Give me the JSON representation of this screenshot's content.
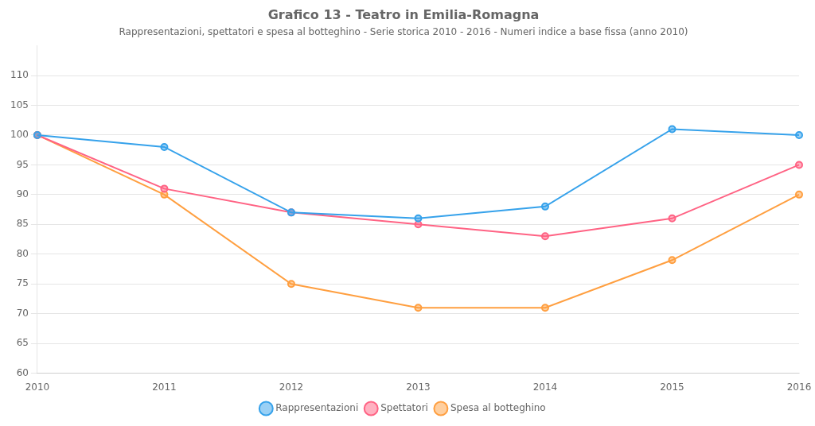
{
  "chart_data": {
    "type": "line",
    "title": "Grafico 13 - Teatro in Emilia-Romagna",
    "subtitle": "Rappresentazioni, spettatori e spesa al botteghino - Serie storica 2010 - 2016 - Numeri indice a base fissa (anno 2010)",
    "categories": [
      "2010",
      "2011",
      "2012",
      "2013",
      "2014",
      "2015",
      "2016"
    ],
    "series": [
      {
        "name": "Rappresentazioni",
        "values": [
          100,
          98,
          87,
          86,
          88,
          101,
          100
        ],
        "marker": "circle",
        "line_style": "solid"
      },
      {
        "name": "Spettatori",
        "values": [
          100,
          91,
          87,
          85,
          83,
          86,
          95
        ],
        "marker": "circle",
        "line_style": "solid"
      },
      {
        "name": "Spesa al botteghino",
        "values": [
          100,
          90,
          75,
          71,
          71,
          79,
          90
        ],
        "marker": "circle",
        "line_style": "solid"
      }
    ],
    "ylim": [
      60,
      115
    ],
    "yticks": [
      60,
      65,
      70,
      75,
      80,
      85,
      90,
      95,
      100,
      105,
      110
    ],
    "grid": true,
    "legend": "bottom"
  }
}
